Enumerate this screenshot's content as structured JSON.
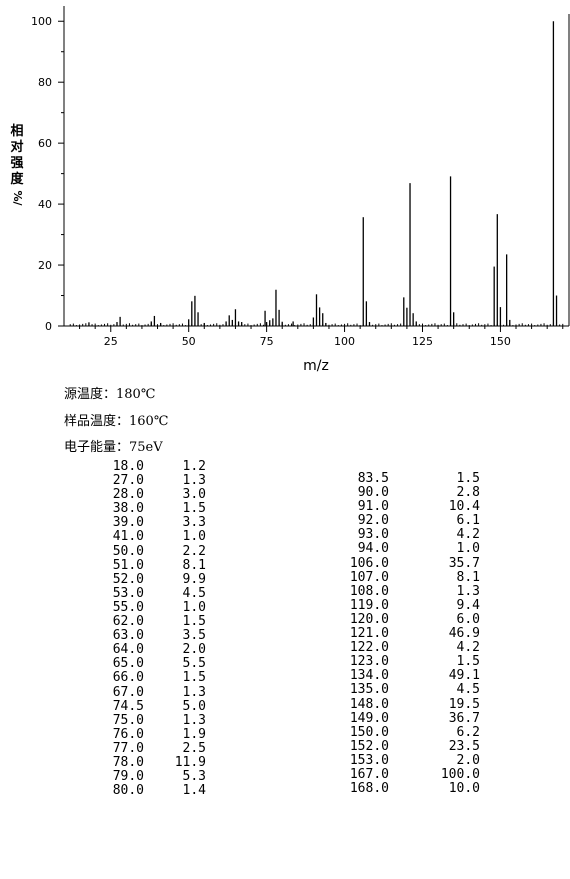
{
  "chart_data": {
    "type": "bar",
    "xlabel": "m/z",
    "ylabel": "相对强度",
    "ylabel_unit": "%/",
    "xlim": [
      10,
      172
    ],
    "ylim": [
      0,
      105
    ],
    "x_ticks": [
      25,
      50,
      75,
      100,
      125,
      150
    ],
    "y_ticks": [
      0,
      20,
      40,
      60,
      80,
      100
    ],
    "x_tick_labels": [
      "25",
      "50",
      "75",
      "100",
      "125",
      "150"
    ],
    "y_tick_labels": [
      "0",
      "20",
      "40",
      "60",
      "80",
      "100"
    ],
    "peaks": [
      {
        "mz": 18.0,
        "intensity": 1.2
      },
      {
        "mz": 27.0,
        "intensity": 1.3
      },
      {
        "mz": 28.0,
        "intensity": 3.0
      },
      {
        "mz": 38.0,
        "intensity": 1.5
      },
      {
        "mz": 39.0,
        "intensity": 3.3
      },
      {
        "mz": 41.0,
        "intensity": 1.0
      },
      {
        "mz": 50.0,
        "intensity": 2.2
      },
      {
        "mz": 51.0,
        "intensity": 8.1
      },
      {
        "mz": 52.0,
        "intensity": 9.9
      },
      {
        "mz": 53.0,
        "intensity": 4.5
      },
      {
        "mz": 55.0,
        "intensity": 1.0
      },
      {
        "mz": 62.0,
        "intensity": 1.5
      },
      {
        "mz": 63.0,
        "intensity": 3.5
      },
      {
        "mz": 64.0,
        "intensity": 2.0
      },
      {
        "mz": 65.0,
        "intensity": 5.5
      },
      {
        "mz": 66.0,
        "intensity": 1.5
      },
      {
        "mz": 67.0,
        "intensity": 1.3
      },
      {
        "mz": 74.5,
        "intensity": 5.0
      },
      {
        "mz": 75.0,
        "intensity": 1.3
      },
      {
        "mz": 76.0,
        "intensity": 1.9
      },
      {
        "mz": 77.0,
        "intensity": 2.5
      },
      {
        "mz": 78.0,
        "intensity": 11.9
      },
      {
        "mz": 79.0,
        "intensity": 5.3
      },
      {
        "mz": 80.0,
        "intensity": 1.4
      },
      {
        "mz": 83.5,
        "intensity": 1.5
      },
      {
        "mz": 90.0,
        "intensity": 2.8
      },
      {
        "mz": 91.0,
        "intensity": 10.4
      },
      {
        "mz": 92.0,
        "intensity": 6.1
      },
      {
        "mz": 93.0,
        "intensity": 4.2
      },
      {
        "mz": 94.0,
        "intensity": 1.0
      },
      {
        "mz": 106.0,
        "intensity": 35.7
      },
      {
        "mz": 107.0,
        "intensity": 8.1
      },
      {
        "mz": 108.0,
        "intensity": 1.3
      },
      {
        "mz": 119.0,
        "intensity": 9.4
      },
      {
        "mz": 120.0,
        "intensity": 6.0
      },
      {
        "mz": 121.0,
        "intensity": 46.9
      },
      {
        "mz": 122.0,
        "intensity": 4.2
      },
      {
        "mz": 123.0,
        "intensity": 1.5
      },
      {
        "mz": 134.0,
        "intensity": 49.1
      },
      {
        "mz": 135.0,
        "intensity": 4.5
      },
      {
        "mz": 148.0,
        "intensity": 19.5
      },
      {
        "mz": 149.0,
        "intensity": 36.7
      },
      {
        "mz": 150.0,
        "intensity": 6.2
      },
      {
        "mz": 152.0,
        "intensity": 23.5
      },
      {
        "mz": 153.0,
        "intensity": 2.0
      },
      {
        "mz": 167.0,
        "intensity": 100.0
      },
      {
        "mz": 168.0,
        "intensity": 10.0
      }
    ]
  },
  "conditions": {
    "source_temp": "源温度：180℃",
    "sample_temp": "样品温度：160℃",
    "electron_energy": "电子能量：75eV"
  },
  "peak_table": {
    "left": [
      [
        "18.0",
        "1.2"
      ],
      [
        "27.0",
        "1.3"
      ],
      [
        "28.0",
        "3.0"
      ],
      [
        "38.0",
        "1.5"
      ],
      [
        "39.0",
        "3.3"
      ],
      [
        "41.0",
        "1.0"
      ],
      [
        "50.0",
        "2.2"
      ],
      [
        "51.0",
        "8.1"
      ],
      [
        "52.0",
        "9.9"
      ],
      [
        "53.0",
        "4.5"
      ],
      [
        "55.0",
        "1.0"
      ],
      [
        "62.0",
        "1.5"
      ],
      [
        "63.0",
        "3.5"
      ],
      [
        "64.0",
        "2.0"
      ],
      [
        "65.0",
        "5.5"
      ],
      [
        "66.0",
        "1.5"
      ],
      [
        "67.0",
        "1.3"
      ],
      [
        "74.5",
        "5.0"
      ],
      [
        "75.0",
        "1.3"
      ],
      [
        "76.0",
        "1.9"
      ],
      [
        "77.0",
        "2.5"
      ],
      [
        "78.0",
        "11.9"
      ],
      [
        "79.0",
        "5.3"
      ],
      [
        "80.0",
        "1.4"
      ]
    ],
    "right": [
      [
        "83.5",
        "1.5"
      ],
      [
        "90.0",
        "2.8"
      ],
      [
        "91.0",
        "10.4"
      ],
      [
        "92.0",
        "6.1"
      ],
      [
        "93.0",
        "4.2"
      ],
      [
        "94.0",
        "1.0"
      ],
      [
        "106.0",
        "35.7"
      ],
      [
        "107.0",
        "8.1"
      ],
      [
        "108.0",
        "1.3"
      ],
      [
        "119.0",
        "9.4"
      ],
      [
        "120.0",
        "6.0"
      ],
      [
        "121.0",
        "46.9"
      ],
      [
        "122.0",
        "4.2"
      ],
      [
        "123.0",
        "1.5"
      ],
      [
        "134.0",
        "49.1"
      ],
      [
        "135.0",
        "4.5"
      ],
      [
        "148.0",
        "19.5"
      ],
      [
        "149.0",
        "36.7"
      ],
      [
        "150.0",
        "6.2"
      ],
      [
        "152.0",
        "23.5"
      ],
      [
        "153.0",
        "2.0"
      ],
      [
        "167.0",
        "100.0"
      ],
      [
        "168.0",
        "10.0"
      ]
    ]
  }
}
